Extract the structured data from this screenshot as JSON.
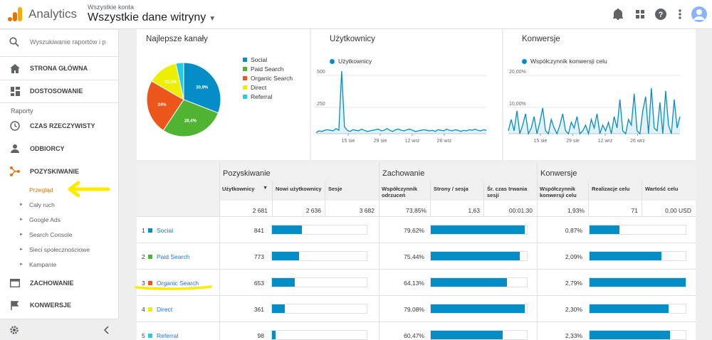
{
  "header": {
    "app_name": "Analytics",
    "account_small": "Wszystkie konta",
    "account_main": "Wszystkie dane witryny"
  },
  "sidebar": {
    "search_placeholder": "Wyszukiwanie raportów i p",
    "home": "STRONA GŁÓWNA",
    "customize": "DOSTOSOWANIE",
    "reports_label": "Raporty",
    "realtime": "CZAS RZECZYWISTY",
    "audience": "ODBIORCY",
    "acquisition": "POZYSKIWANIE",
    "sub_items": [
      "Przegląd",
      "Cały ruch",
      "Google Ads",
      "Search Console",
      "Sieci społecznościowe",
      "Kampanie"
    ],
    "behavior": "ZACHOWANIE",
    "conversions": "KONWERSJE"
  },
  "cards": {
    "channels": {
      "title": "Najlepsze kanały",
      "legend": [
        "Social",
        "Paid Search",
        "Organic Search",
        "Direct",
        "Referral"
      ],
      "colors": [
        "#058dc7",
        "#50b432",
        "#ed561b",
        "#edef00",
        "#24cbe5"
      ],
      "slice_labels": [
        "30,9%",
        "28,4%",
        "24%",
        "13,3%",
        ""
      ]
    },
    "users": {
      "title": "Użytkownicy",
      "legend": "Użytkownicy",
      "y_ticks": [
        "500",
        "250"
      ],
      "x_ticks": [
        "15 sie",
        "29 sie",
        "12 wrz",
        "26 wrz"
      ]
    },
    "conversions": {
      "title": "Konwersje",
      "legend": "Współczynnik konwersji celu",
      "y_ticks": [
        "20,00%",
        "10,00%"
      ],
      "x_ticks": [
        "15 sie",
        "29 sie",
        "12 wrz",
        "26 wrz"
      ]
    }
  },
  "chart_data": [
    {
      "type": "pie",
      "title": "Najlepsze kanały",
      "categories": [
        "Social",
        "Paid Search",
        "Organic Search",
        "Direct",
        "Referral"
      ],
      "values": [
        30.9,
        28.4,
        24.0,
        13.3,
        3.4
      ]
    },
    {
      "type": "area",
      "title": "Użytkownicy",
      "ylim": [
        0,
        600
      ],
      "series": [
        {
          "name": "Użytkownicy",
          "values": [
            10,
            25,
            20,
            30,
            35,
            30,
            25,
            45,
            30,
            560,
            60,
            30,
            20,
            35,
            30,
            25,
            40,
            30,
            20,
            25,
            30,
            35,
            40,
            25,
            30,
            45,
            30,
            20,
            35,
            40,
            30,
            25,
            35,
            40,
            30,
            20,
            25,
            30,
            35,
            30,
            25,
            30,
            20,
            35,
            30,
            25,
            40,
            30,
            25,
            35,
            30,
            20,
            30,
            25,
            35,
            30,
            40,
            30,
            25,
            35,
            30
          ]
        }
      ]
    },
    {
      "type": "area",
      "title": "Konwersje",
      "ylim": [
        0,
        24
      ],
      "series": [
        {
          "name": "Współczynnik konwersji celu",
          "values": [
            1,
            5,
            1,
            8,
            0,
            3,
            7,
            0,
            2,
            6,
            0,
            4,
            9,
            1,
            0,
            5,
            2,
            0,
            3,
            7,
            1,
            0,
            4,
            2,
            6,
            0,
            1,
            3,
            0,
            5,
            2,
            7,
            0,
            3,
            1,
            4,
            0,
            6,
            2,
            12,
            1,
            0,
            5,
            3,
            14,
            1,
            0,
            8,
            13,
            0,
            16,
            2,
            1,
            11,
            0,
            15,
            3,
            0,
            12,
            2,
            6
          ]
        }
      ]
    }
  ],
  "table": {
    "groups": [
      "Pozyskiwanie",
      "Zachowanie",
      "Konwersje"
    ],
    "columns": [
      "Użytkownicy",
      "Nowi użytkownicy",
      "Sesje",
      "Współczynnik odrzuceń",
      "Strony / sesja",
      "Śr. czas trwania sesji",
      "Współczynnik konwersji celu",
      "Realizacje celu",
      "Wartość celu"
    ],
    "totals": [
      "2 681",
      "2 636",
      "3 682",
      "73,85%",
      "1,63",
      "00:01:30",
      "1,93%",
      "71",
      "0,00 USD"
    ],
    "rows": [
      {
        "n": "1",
        "name": "Social",
        "color": "#058dc7",
        "users": "841",
        "users_frac": 0.314,
        "bounce": "79,62%",
        "bounce_frac": 0.796,
        "conv": "0,87%",
        "conv_frac": 0.312
      },
      {
        "n": "2",
        "name": "Paid Search",
        "color": "#50b432",
        "users": "773",
        "users_frac": 0.288,
        "bounce": "75,44%",
        "bounce_frac": 0.754,
        "conv": "2,09%",
        "conv_frac": 0.749
      },
      {
        "n": "3",
        "name": "Organic Search",
        "color": "#ed561b",
        "users": "653",
        "users_frac": 0.244,
        "bounce": "64,13%",
        "bounce_frac": 0.641,
        "conv": "2,79%",
        "conv_frac": 1.0
      },
      {
        "n": "4",
        "name": "Direct",
        "color": "#edef00",
        "users": "361",
        "users_frac": 0.135,
        "bounce": "79,08%",
        "bounce_frac": 0.791,
        "conv": "2,30%",
        "conv_frac": 0.824
      },
      {
        "n": "5",
        "name": "Referral",
        "color": "#24cbe5",
        "users": "98",
        "users_frac": 0.037,
        "bounce": "60,47%",
        "bounce_frac": 0.605,
        "conv": "2,33%",
        "conv_frac": 0.835
      }
    ]
  }
}
